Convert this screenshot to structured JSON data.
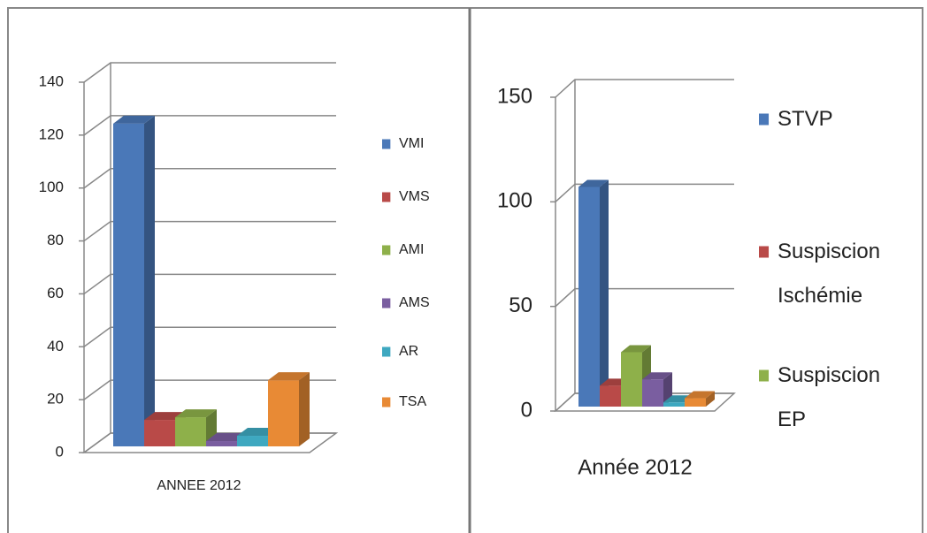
{
  "chart_data": [
    {
      "type": "bar3d",
      "categories": [
        "ANNEE 2012"
      ],
      "series": [
        {
          "name": "VMI",
          "color": "#4a78b8",
          "values": [
            122
          ]
        },
        {
          "name": "VMS",
          "color": "#b94a48",
          "values": [
            10
          ]
        },
        {
          "name": "AMI",
          "color": "#8eb04a",
          "values": [
            11
          ]
        },
        {
          "name": "AMS",
          "color": "#7a5ea0",
          "values": [
            2
          ]
        },
        {
          "name": "AR",
          "color": "#3ea8c0",
          "values": [
            4
          ]
        },
        {
          "name": "TSA",
          "color": "#e88a35",
          "values": [
            25
          ]
        }
      ],
      "ylim": [
        0,
        140
      ],
      "yticks": [
        0,
        20,
        40,
        60,
        80,
        100,
        120,
        140
      ],
      "grid": true,
      "legend": "right"
    },
    {
      "type": "bar3d",
      "categories": [
        "Année 2012"
      ],
      "series": [
        {
          "name": "STVP",
          "color": "#4a78b8",
          "values": [
            105
          ]
        },
        {
          "name": "Suspiscion Ischémie",
          "color": "#b94a48",
          "values": [
            10
          ]
        },
        {
          "name": "Suspiscion EP",
          "color": "#8eb04a",
          "values": [
            26
          ]
        },
        {
          "name": null,
          "color": "#7a5ea0",
          "values": [
            13
          ]
        },
        {
          "name": null,
          "color": "#3ea8c0",
          "values": [
            2
          ]
        },
        {
          "name": null,
          "color": "#e88a35",
          "values": [
            4
          ]
        }
      ],
      "ylim": [
        0,
        150
      ],
      "yticks": [
        0,
        50,
        100,
        150
      ],
      "grid": true,
      "legend": "right"
    }
  ]
}
